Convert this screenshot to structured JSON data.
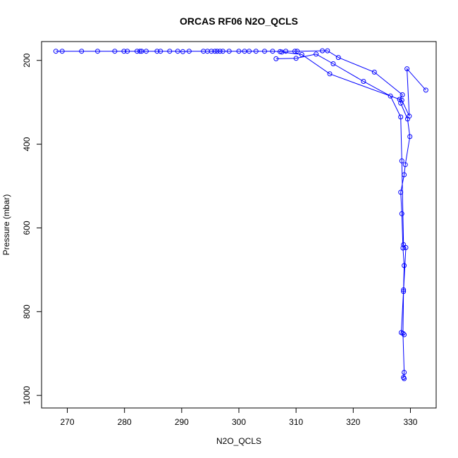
{
  "chart_data": {
    "type": "line",
    "title": "ORCAS RF06 N2O_QCLS",
    "xlabel": "N2O_QCLS",
    "ylabel": "Pressure (mbar)",
    "xlim": [
      265.5,
      334.5
    ],
    "ylim": [
      1030,
      155
    ],
    "y_reversed": true,
    "x_ticks": [
      270,
      280,
      290,
      300,
      310,
      320,
      330
    ],
    "y_ticks": [
      200,
      400,
      600,
      800,
      1000
    ],
    "marker": "open-circle",
    "colors": {
      "series": "#0000ff",
      "axes": "#000000"
    },
    "series": [
      {
        "points": [
          [
            268.0,
            178
          ],
          [
            269.1,
            178
          ],
          [
            272.5,
            178
          ],
          [
            275.3,
            178
          ],
          [
            278.3,
            178
          ],
          [
            279.9,
            178
          ],
          [
            280.5,
            178
          ],
          [
            282.2,
            178
          ],
          [
            282.7,
            178
          ],
          [
            283.0,
            178
          ],
          [
            283.8,
            178
          ],
          [
            285.7,
            178
          ],
          [
            286.3,
            178
          ],
          [
            287.9,
            178
          ],
          [
            289.3,
            178
          ],
          [
            290.2,
            179
          ],
          [
            291.3,
            178
          ],
          [
            293.8,
            178
          ],
          [
            294.5,
            178
          ],
          [
            295.2,
            178
          ],
          [
            295.8,
            178
          ],
          [
            296.2,
            178
          ],
          [
            296.7,
            178
          ],
          [
            297.2,
            178
          ],
          [
            298.3,
            178
          ],
          [
            300.0,
            178
          ],
          [
            301.0,
            178
          ],
          [
            301.8,
            178
          ],
          [
            303.0,
            178
          ],
          [
            304.5,
            178
          ],
          [
            305.9,
            178
          ],
          [
            307.2,
            179
          ],
          [
            308.2,
            178
          ],
          [
            309.8,
            178
          ],
          [
            310.2,
            178
          ],
          [
            314.6,
            177
          ],
          [
            315.5,
            177
          ],
          [
            317.4,
            193
          ],
          [
            323.7,
            228
          ],
          [
            328.6,
            282
          ],
          [
            328.1,
            293
          ],
          [
            328.3,
            302
          ],
          [
            329.5,
            340
          ],
          [
            329.9,
            382
          ],
          [
            329.1,
            449
          ],
          [
            328.9,
            473
          ],
          [
            328.3,
            515
          ],
          [
            328.5,
            566
          ],
          [
            328.7,
            648
          ],
          [
            328.9,
            690
          ],
          [
            328.8,
            748
          ],
          [
            328.8,
            752
          ],
          [
            328.7,
            852
          ],
          [
            328.9,
            945
          ],
          [
            328.8,
            957
          ],
          [
            328.9,
            960
          ]
        ]
      },
      {
        "points": [
          [
            306.5,
            196
          ],
          [
            310.0,
            195
          ],
          [
            313.5,
            185
          ],
          [
            316.5,
            208
          ],
          [
            321.8,
            250
          ],
          [
            326.5,
            285
          ],
          [
            328.3,
            335
          ],
          [
            328.5,
            440
          ],
          [
            328.8,
            640
          ],
          [
            329.2,
            647
          ],
          [
            328.4,
            850
          ],
          [
            328.9,
            855
          ]
        ]
      },
      {
        "points": [
          [
            307.5,
            180
          ],
          [
            311.0,
            186
          ],
          [
            315.9,
            232
          ],
          [
            328.5,
            295
          ],
          [
            329.8,
            333
          ],
          [
            329.4,
            220
          ],
          [
            332.7,
            271
          ]
        ]
      }
    ]
  }
}
